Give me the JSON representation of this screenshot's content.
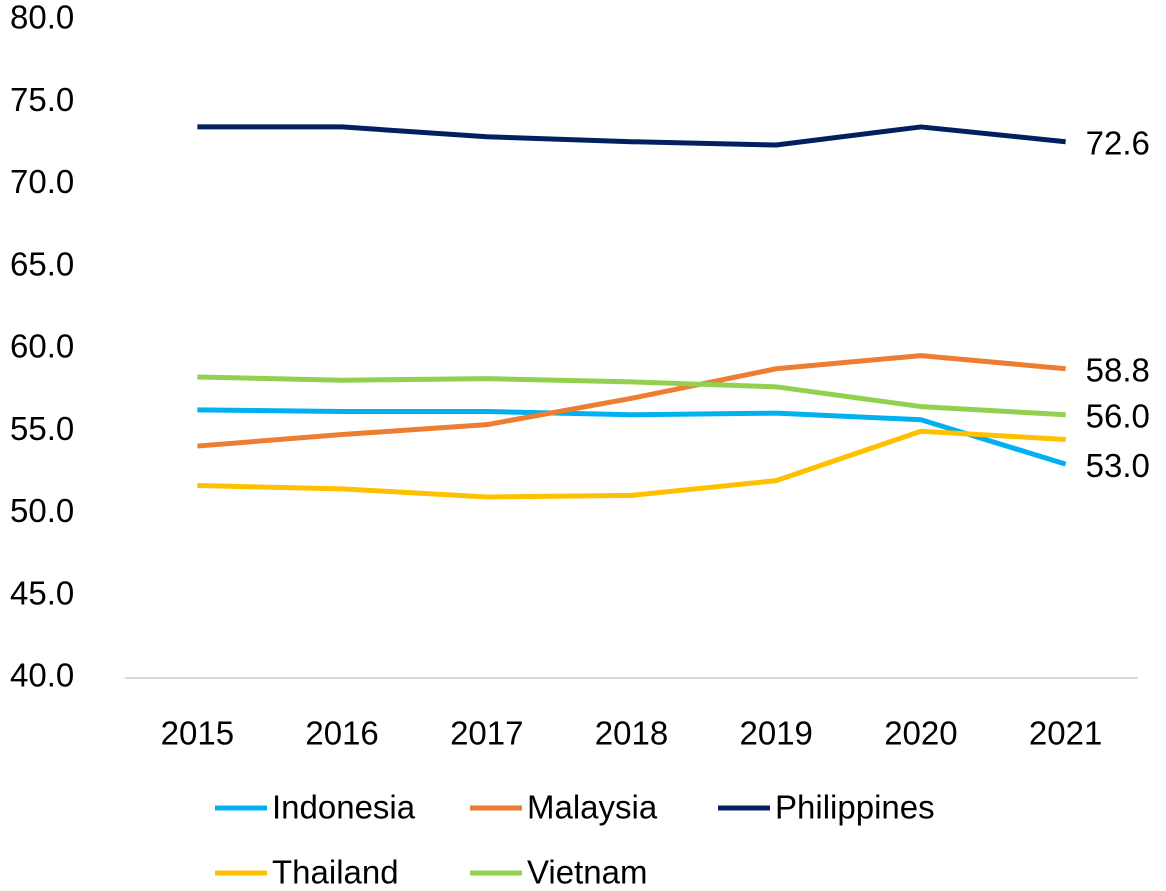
{
  "chart_data": {
    "type": "line",
    "categories": [
      "2015",
      "2016",
      "2017",
      "2018",
      "2019",
      "2020",
      "2021"
    ],
    "series": [
      {
        "name": "Indonesia",
        "color": "#00b0f0",
        "values": [
          56.3,
          56.2,
          56.2,
          56.0,
          56.1,
          55.7,
          53.0
        ],
        "value_labels": [
          null,
          null,
          null,
          null,
          null,
          null,
          "53.0"
        ]
      },
      {
        "name": "Malaysia",
        "color": "#ed7d31",
        "values": [
          54.1,
          54.8,
          55.4,
          57.0,
          58.8,
          59.6,
          58.8
        ],
        "value_labels": [
          null,
          null,
          null,
          null,
          null,
          null,
          "58.8"
        ]
      },
      {
        "name": "Philippines",
        "color": "#002060",
        "values": [
          73.5,
          73.5,
          72.9,
          72.6,
          72.4,
          73.5,
          72.6
        ],
        "value_labels": [
          null,
          null,
          null,
          null,
          null,
          null,
          "72.6"
        ]
      },
      {
        "name": "Thailand",
        "color": "#ffc000",
        "values": [
          51.7,
          51.5,
          51.0,
          51.1,
          52.0,
          55.0,
          54.5
        ]
      },
      {
        "name": "Vietnam",
        "color": "#92d050",
        "values": [
          58.3,
          58.1,
          58.2,
          58.0,
          57.7,
          56.5,
          56.0
        ],
        "value_labels": [
          null,
          null,
          null,
          null,
          null,
          null,
          "56.0"
        ]
      }
    ],
    "ylim": [
      40,
      80
    ],
    "yticks": [
      {
        "value": 40,
        "label": "40.0"
      },
      {
        "value": 45,
        "label": "45.0"
      },
      {
        "value": 50,
        "label": "50.0"
      },
      {
        "value": 55,
        "label": "55.0"
      },
      {
        "value": 60,
        "label": "60.0"
      },
      {
        "value": 65,
        "label": "65.0"
      },
      {
        "value": 70,
        "label": "70.0"
      },
      {
        "value": 75,
        "label": "75.0"
      },
      {
        "value": 80,
        "label": "80.0"
      }
    ],
    "grid": false
  }
}
